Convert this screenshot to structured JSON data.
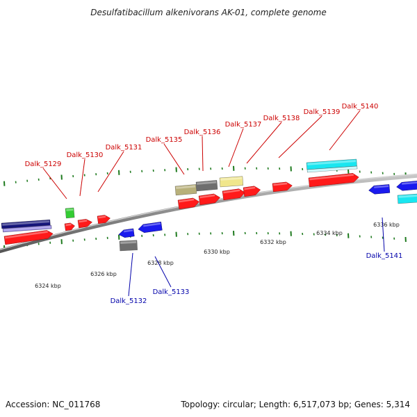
{
  "title": "Desulfatibacillum alkenivorans AK-01, complete genome",
  "footer": {
    "accession": "Accession: NC_011768",
    "topology": "Topology: circular; Length: 6,517,073 bp; Genes: 5,314"
  },
  "colors": {
    "forward_label": "#cc0000",
    "reverse_label": "#0000aa",
    "backbone": "#8c8c8c",
    "tick": "#1e7a1e",
    "red_feature": "#ff1a1a",
    "blue_feature": "#1a1aee",
    "navy_feature": "#14147a",
    "lavender_feature": "#8c7ee0",
    "green_feature": "#33cc33",
    "gray_feature": "#6e6e6e",
    "khaki_feature": "#b8b07a",
    "cream_feature": "#f0e68c",
    "cyan_feature": "#19e6f0"
  },
  "scale_labels": [
    "6324 kbp",
    "6326 kbp",
    "6328 kbp",
    "6330 kbp",
    "6332 kbp",
    "6334 kbp",
    "6336 kbp"
  ],
  "gene_labels_forward": [
    "Dalk_5129",
    "Dalk_5130",
    "Dalk_5131",
    "Dalk_5135",
    "Dalk_5136",
    "Dalk_5137",
    "Dalk_5138",
    "Dalk_5139",
    "Dalk_5140"
  ],
  "gene_labels_reverse": [
    "Dalk_5132",
    "Dalk_5133",
    "Dalk_5141"
  ]
}
